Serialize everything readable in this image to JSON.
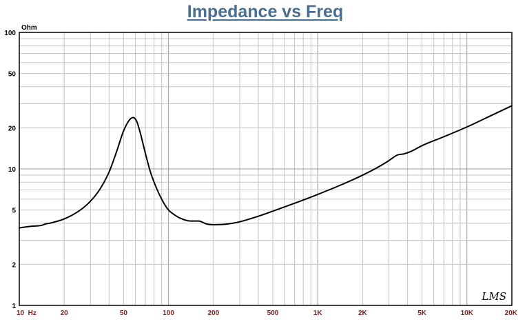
{
  "chart_data": {
    "type": "line",
    "title": "Impedance vs Freq",
    "ylabel": "Ohm",
    "xscale": "log",
    "yscale": "log",
    "xlim": [
      10,
      20000
    ],
    "ylim": [
      1,
      100
    ],
    "grid": true,
    "x_tick_labels": [
      {
        "value": 10,
        "label": "10  Hz"
      },
      {
        "value": 20,
        "label": "20"
      },
      {
        "value": 50,
        "label": "50"
      },
      {
        "value": 100,
        "label": "100"
      },
      {
        "value": 200,
        "label": "200"
      },
      {
        "value": 500,
        "label": "500"
      },
      {
        "value": 1000,
        "label": "1K"
      },
      {
        "value": 2000,
        "label": "2K"
      },
      {
        "value": 5000,
        "label": "5K"
      },
      {
        "value": 10000,
        "label": "10K"
      },
      {
        "value": 20000,
        "label": "20K"
      }
    ],
    "y_tick_labels": [
      {
        "value": 100,
        "label": "100"
      },
      {
        "value": 50,
        "label": "50"
      },
      {
        "value": 20,
        "label": "20"
      },
      {
        "value": 10,
        "label": "10"
      },
      {
        "value": 5,
        "label": "5"
      },
      {
        "value": 2,
        "label": "2"
      },
      {
        "value": 1,
        "label": "1"
      }
    ],
    "series": [
      {
        "color": "#000000",
        "x": [
          10,
          12,
          14,
          15,
          16,
          20,
          25,
          30,
          35,
          40,
          45,
          50,
          55,
          58,
          60,
          62,
          65,
          70,
          75,
          80,
          90,
          100,
          110,
          120,
          140,
          160,
          170,
          180,
          200,
          250,
          300,
          400,
          500,
          700,
          1000,
          1500,
          2000,
          2500,
          3000,
          3400,
          3800,
          4200,
          5000,
          7000,
          10000,
          15000,
          20000
        ],
        "y": [
          3.7,
          3.8,
          3.85,
          3.95,
          4.0,
          4.3,
          4.9,
          5.8,
          7.2,
          9.5,
          13.5,
          19.0,
          23.0,
          23.8,
          23.2,
          21.5,
          18.0,
          13.0,
          9.8,
          8.0,
          6.0,
          5.0,
          4.6,
          4.35,
          4.15,
          4.15,
          4.05,
          3.95,
          3.9,
          3.95,
          4.1,
          4.5,
          4.9,
          5.6,
          6.5,
          7.8,
          9.0,
          10.2,
          11.5,
          12.6,
          12.9,
          13.4,
          14.8,
          17.2,
          20.3,
          25.0,
          29.0
        ]
      }
    ],
    "watermark": "LMS"
  }
}
